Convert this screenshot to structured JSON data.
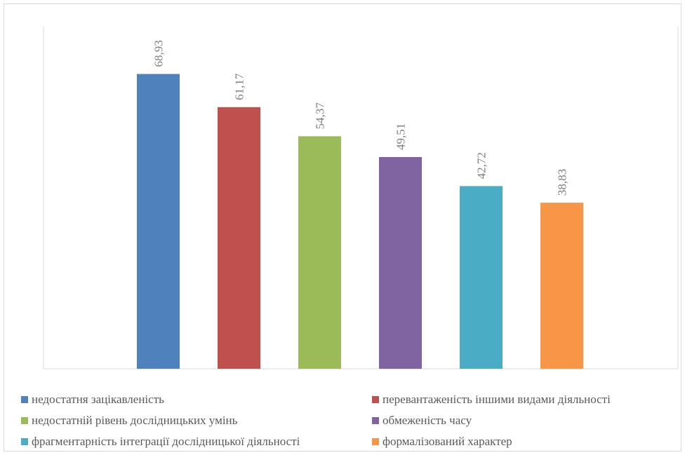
{
  "chart_data": {
    "type": "bar",
    "title": "",
    "xlabel": "",
    "ylabel": "",
    "ylim": [
      0,
      80
    ],
    "grid": false,
    "legend_position": "bottom",
    "series": [
      {
        "name": "недостатня зацікавленість",
        "value": 68.93,
        "label": "68,93",
        "color": "#4f81bd"
      },
      {
        "name": "перевантаженість іншими видами діяльності",
        "value": 61.17,
        "label": "61,17",
        "color": "#c0504d"
      },
      {
        "name": "недостатній рівень дослідницьких умінь",
        "value": 54.37,
        "label": "54,37",
        "color": "#9bbb59"
      },
      {
        "name": "обмеженість часу",
        "value": 49.51,
        "label": "49,51",
        "color": "#8064a2"
      },
      {
        "name": "фрагментарність інтеграції дослідницької діяльності",
        "value": 42.72,
        "label": "42,72",
        "color": "#4bacc6"
      },
      {
        "name": "формалізований характер",
        "value": 38.83,
        "label": "38,83",
        "color": "#f79646"
      }
    ]
  }
}
